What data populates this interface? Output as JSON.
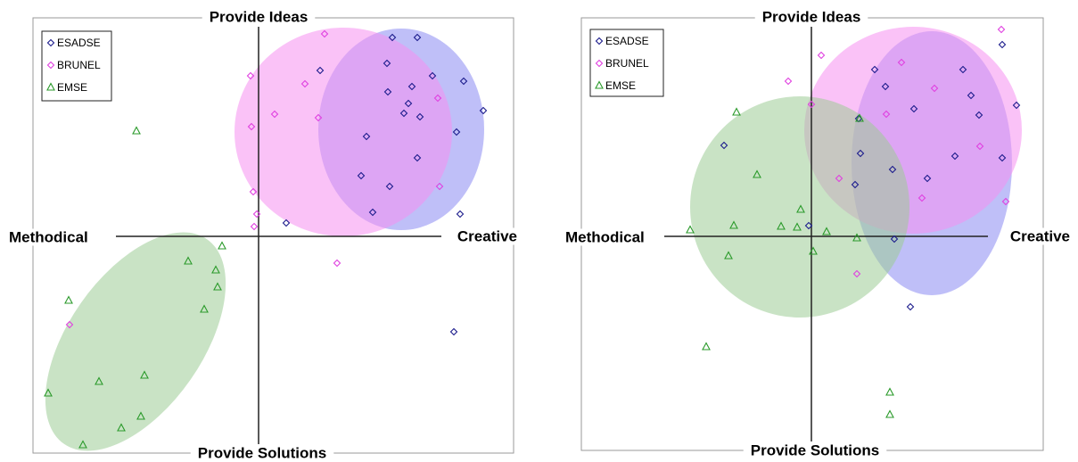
{
  "chart_data": [
    {
      "type": "scatter",
      "top_label": "Provide Ideas",
      "bottom_label": "Provide Solutions",
      "left_label": "Methodical",
      "right_label": "Creative",
      "xlim": [
        -253,
        286
      ],
      "ylim": [
        -243,
        245
      ],
      "series": [
        {
          "name": "ESADSE",
          "color": "#1c1c8c",
          "marker": "diamond",
          "x": [
            150,
            178,
            69,
            144,
            195,
            230,
            145,
            172,
            168,
            163,
            181,
            252,
            121,
            222,
            178,
            115,
            147,
            128,
            226,
            31,
            219
          ],
          "y": [
            223,
            223,
            186,
            194,
            180,
            174,
            162,
            168,
            149,
            138,
            134,
            141,
            112,
            117,
            88,
            68,
            56,
            27,
            25,
            15,
            -107
          ],
          "ellipse": {
            "cx": 160,
            "cy": 120,
            "rx": 93,
            "ry": 113,
            "angle": 0,
            "fill": "#8a8af2"
          }
        },
        {
          "name": "BRUNEL",
          "color": "#e040e0",
          "marker": "diamond",
          "x": [
            74,
            -9,
            52,
            18,
            67,
            -8,
            201,
            203,
            -6,
            -2,
            -5,
            88,
            -212
          ],
          "y": [
            227,
            180,
            171,
            137,
            133,
            123,
            155,
            56,
            50,
            25,
            11,
            -30,
            -99
          ],
          "ellipse": {
            "cx": 95,
            "cy": 117,
            "rx": 122,
            "ry": 117,
            "angle": 0,
            "fill": "#f590f0"
          }
        },
        {
          "name": "EMSE",
          "color": "#2a9a2a",
          "marker": "triangle",
          "x": [
            -137,
            -41,
            -79,
            -48,
            -46,
            -61,
            -213,
            -128,
            -179,
            -236,
            -132,
            -154,
            -197
          ],
          "y": [
            118,
            -11,
            -28,
            -38,
            -57,
            -82,
            -72,
            -156,
            -163,
            -176,
            -202,
            -215,
            -234
          ],
          "ellipse": {
            "cx": -138,
            "cy": -118,
            "rx": 75,
            "ry": 140,
            "angle": 35,
            "fill": "#9ccc96"
          }
        }
      ]
    },
    {
      "type": "scatter",
      "top_label": "Provide Ideas",
      "bottom_label": "Provide Solutions",
      "left_label": "Methodical",
      "right_label": "Creative",
      "xlim": [
        -258,
        260
      ],
      "ylim": [
        -240,
        245
      ],
      "series": [
        {
          "name": "ESADSE",
          "color": "#1c1c8c",
          "marker": "diamond",
          "x": [
            214,
            71,
            83,
            170,
            179,
            230,
            115,
            188,
            53,
            -98,
            161,
            214,
            55,
            91,
            130,
            49,
            -3,
            93,
            111
          ],
          "y": [
            215,
            187,
            168,
            187,
            158,
            147,
            143,
            136,
            132,
            102,
            90,
            88,
            93,
            75,
            65,
            58,
            12,
            -3,
            -79
          ],
          "ellipse": {
            "cx": 135,
            "cy": 82,
            "rx": 90,
            "ry": 148,
            "angle": 0,
            "fill": "#8a8af2"
          }
        },
        {
          "name": "BRUNEL",
          "color": "#e040e0",
          "marker": "diamond",
          "x": [
            213,
            -26,
            11,
            101,
            138,
            0,
            84,
            189,
            31,
            124,
            218,
            51
          ],
          "y": [
            232,
            174,
            203,
            195,
            166,
            148,
            137,
            101,
            65,
            43,
            39,
            -42
          ],
          "ellipse": {
            "cx": 114,
            "cy": 119,
            "rx": 122,
            "ry": 116,
            "angle": 0,
            "fill": "#f590f0"
          }
        },
        {
          "name": "EMSE",
          "color": "#2a9a2a",
          "marker": "triangle",
          "x": [
            -84,
            54,
            -61,
            -12,
            -136,
            -87,
            -34,
            -16,
            17,
            51,
            2,
            -93,
            -118,
            88,
            88
          ],
          "y": [
            139,
            132,
            69,
            30,
            7,
            12,
            11,
            10,
            5,
            -2,
            -17,
            -22,
            -124,
            -175,
            -200
          ],
          "ellipse": {
            "cx": -13,
            "cy": 33,
            "rx": 123,
            "ry": 124,
            "angle": 0,
            "fill": "#9ccc96"
          }
        }
      ]
    }
  ]
}
